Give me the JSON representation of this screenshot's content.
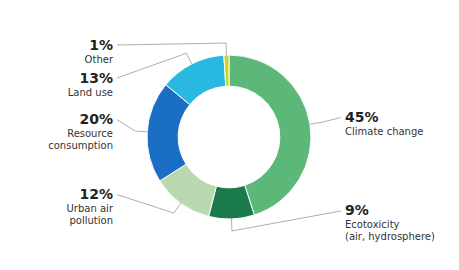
{
  "chart_data": {
    "type": "pie",
    "categories": [
      "Climate change",
      "Ecotoxicity\n(air, hydrosphere)",
      "Urban air\npollution",
      "Resource\nconsumption",
      "Land use",
      "Other"
    ],
    "values": [
      45,
      9,
      12,
      20,
      13,
      1
    ],
    "value_labels": [
      "45%",
      "9%",
      "12%",
      "20%",
      "13%",
      "1%"
    ],
    "colors": [
      "#5cb878",
      "#1a7a4a",
      "#b8d8b0",
      "#1a6fc4",
      "#29b8e0",
      "#c8d820"
    ],
    "data_labels": true
  }
}
